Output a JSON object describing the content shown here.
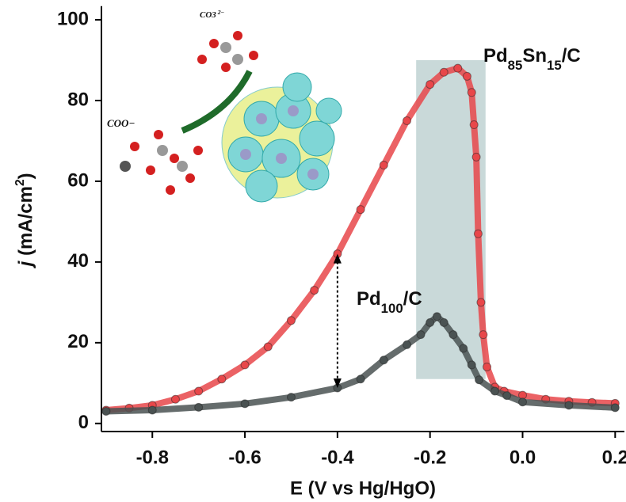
{
  "chart_data": {
    "type": "scatter",
    "xlabel": "E (V vs Hg/HgO)",
    "ylabel": "j (mA/cm2)",
    "xlim": [
      -0.91,
      0.22
    ],
    "ylim": [
      -2,
      103
    ],
    "xticks": [
      -0.8,
      -0.6,
      -0.4,
      -0.2,
      {
        "value": 0,
        "label": "0.0"
      },
      0.2
    ],
    "yticks": [
      0,
      20,
      40,
      60,
      80,
      100
    ],
    "shaded_band": {
      "x": [
        -0.23,
        -0.08
      ],
      "y": [
        11,
        90
      ],
      "color": "#b7cccc"
    },
    "series": [
      {
        "name": "Pd85Sn15/C",
        "color": "#e8474a",
        "x": [
          -0.9,
          -0.85,
          -0.8,
          -0.75,
          -0.7,
          -0.65,
          -0.6,
          -0.55,
          -0.5,
          -0.45,
          -0.4,
          -0.35,
          -0.3,
          -0.25,
          -0.2,
          -0.17,
          -0.14,
          -0.12,
          -0.11,
          -0.105,
          -0.1,
          -0.096,
          -0.09,
          -0.085,
          -0.077,
          -0.06,
          -0.04,
          0,
          0.05,
          0.1,
          0.15,
          0.2
        ],
        "values": [
          3.3,
          3.8,
          4.5,
          6,
          8,
          11,
          14.5,
          19,
          25.5,
          33,
          42,
          53,
          64,
          75,
          84,
          87,
          88,
          86,
          82,
          74,
          66,
          47,
          30,
          22,
          14,
          9,
          8,
          7,
          6,
          5.5,
          5.2,
          5
        ]
      },
      {
        "name": "Pd100/C",
        "color": "#4a5252",
        "x": [
          -0.9,
          -0.8,
          -0.7,
          -0.6,
          -0.5,
          -0.4,
          -0.35,
          -0.3,
          -0.25,
          -0.22,
          -0.2,
          -0.185,
          -0.17,
          -0.15,
          -0.128,
          -0.11,
          -0.094,
          -0.06,
          -0.034,
          0,
          0.1,
          0.2
        ],
        "values": [
          3,
          3.3,
          4,
          4.9,
          6.5,
          8.8,
          11,
          15.7,
          19.5,
          22,
          25,
          26.5,
          25,
          22,
          18.6,
          14.5,
          10.8,
          8,
          6.9,
          5.3,
          4.5,
          3.9
        ]
      }
    ],
    "inset": {
      "labels": [
        "COO−",
        "CO3 2−"
      ]
    }
  }
}
